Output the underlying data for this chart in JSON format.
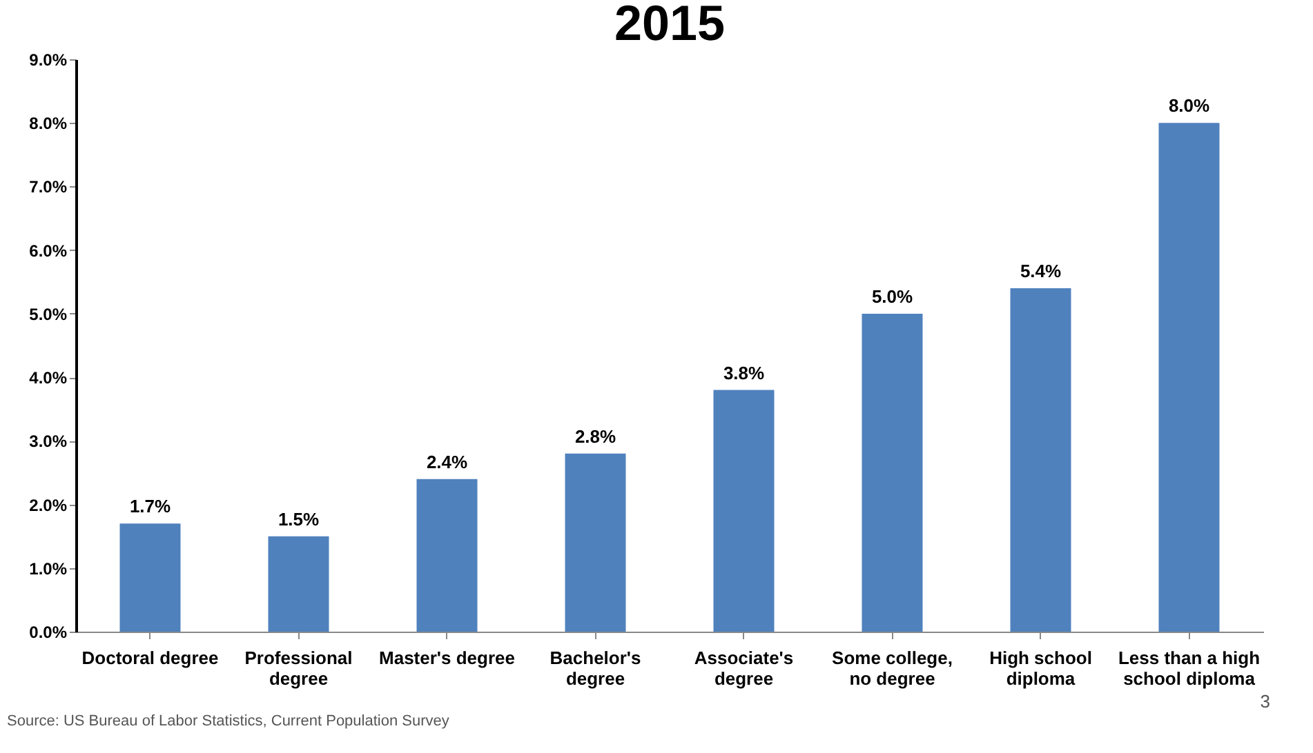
{
  "chart_data": {
    "type": "bar",
    "title": "2015",
    "categories": [
      "Doctoral degree",
      "Professional degree",
      "Master's degree",
      "Bachelor's degree",
      "Associate's degree",
      "Some college, no degree",
      "High school diploma",
      "Less than a high school diploma"
    ],
    "values": [
      1.7,
      1.5,
      2.4,
      2.8,
      3.8,
      5.0,
      5.4,
      8.0
    ],
    "value_labels": [
      "1.7%",
      "1.5%",
      "2.4%",
      "2.8%",
      "3.8%",
      "5.0%",
      "5.4%",
      "8.0%"
    ],
    "color": "#4f81bd",
    "ylim": [
      0,
      9
    ],
    "yticks": [
      {
        "value": 0,
        "label": "0.0%"
      },
      {
        "value": 1,
        "label": "1.0%"
      },
      {
        "value": 2,
        "label": "2.0%"
      },
      {
        "value": 3,
        "label": "3.0%"
      },
      {
        "value": 4,
        "label": "4.0%"
      },
      {
        "value": 5,
        "label": "5.0%"
      },
      {
        "value": 6,
        "label": "6.0%"
      },
      {
        "value": 7,
        "label": "7.0%"
      },
      {
        "value": 8,
        "label": "8.0%"
      },
      {
        "value": 9,
        "label": "9.0%"
      }
    ],
    "grid": false,
    "annotations": [
      "Source: US Bureau of Labor Statistics, Current Population Survey",
      "3"
    ]
  }
}
